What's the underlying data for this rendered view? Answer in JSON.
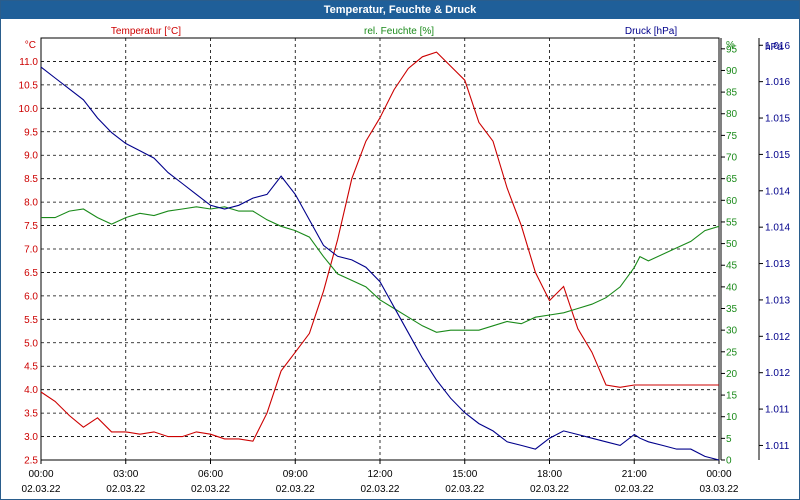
{
  "window": {
    "title": "Temperatur, Feuchte & Druck"
  },
  "chart_data": {
    "type": "line",
    "title": "Temperatur, Feuchte & Druck",
    "x_ticks": [
      {
        "time": "00:00",
        "date": "02.03.22"
      },
      {
        "time": "03:00",
        "date": "02.03.22"
      },
      {
        "time": "06:00",
        "date": "02.03.22"
      },
      {
        "time": "09:00",
        "date": "02.03.22"
      },
      {
        "time": "12:00",
        "date": "02.03.22"
      },
      {
        "time": "15:00",
        "date": "02.03.22"
      },
      {
        "time": "18:00",
        "date": "02.03.22"
      },
      {
        "time": "21:00",
        "date": "02.03.22"
      },
      {
        "time": "00:00",
        "date": "03.03.22"
      }
    ],
    "xlim_hours": [
      0,
      24
    ],
    "grid": true,
    "axes": {
      "temperature": {
        "unit": "°C",
        "color": "#cc0000",
        "ylim": [
          2.5,
          11.5
        ],
        "ticks": [
          "2.5",
          "3.0",
          "3.5",
          "4.0",
          "4.5",
          "5.0",
          "5.5",
          "6.0",
          "6.5",
          "7.0",
          "7.5",
          "8.0",
          "8.5",
          "9.0",
          "9.5",
          "10.0",
          "10.5",
          "11.0"
        ]
      },
      "humidity": {
        "unit": "%",
        "color": "#1a8a1a",
        "ylim": [
          0,
          97.5
        ],
        "ticks": [
          "0",
          "5",
          "10",
          "15",
          "20",
          "25",
          "30",
          "35",
          "40",
          "45",
          "50",
          "55",
          "60",
          "65",
          "70",
          "75",
          "80",
          "85",
          "90",
          "95"
        ]
      },
      "pressure": {
        "unit": "hPa",
        "color": "#00008b",
        "ylim": [
          1010.8,
          1016.6
        ],
        "ticks": [
          "1.011",
          "1.011",
          "1.012",
          "1.012",
          "1.013",
          "1.013",
          "1.014",
          "1.014",
          "1.015",
          "1.015",
          "1.016",
          "1.016"
        ],
        "tick_values": [
          1011.0,
          1011.5,
          1012.0,
          1012.5,
          1013.0,
          1013.5,
          1014.0,
          1014.5,
          1015.0,
          1015.5,
          1016.0,
          1016.5
        ]
      }
    },
    "series": [
      {
        "name": "Temperatur [°C]",
        "axis": "temperature",
        "color": "#cc0000",
        "x": [
          0,
          0.5,
          1,
          1.5,
          2,
          2.5,
          3,
          3.5,
          4,
          4.5,
          5,
          5.5,
          6,
          6.5,
          7,
          7.5,
          8,
          8.5,
          9,
          9.5,
          10,
          10.5,
          11,
          11.5,
          12,
          12.5,
          13,
          13.5,
          14,
          14.5,
          15,
          15.5,
          16,
          16.5,
          17,
          17.5,
          18,
          18.5,
          19,
          19.5,
          20,
          20.5,
          21,
          21.2,
          21.5,
          22,
          22.5,
          23,
          23.5,
          24
        ],
        "values": [
          3.95,
          3.75,
          3.45,
          3.2,
          3.4,
          3.1,
          3.1,
          3.05,
          3.1,
          3.0,
          3.0,
          3.1,
          3.05,
          2.95,
          2.95,
          2.9,
          3.5,
          4.4,
          4.8,
          5.2,
          6.1,
          7.2,
          8.5,
          9.3,
          9.8,
          10.4,
          10.85,
          11.1,
          11.2,
          10.9,
          10.6,
          9.7,
          9.3,
          8.3,
          7.5,
          6.5,
          5.9,
          6.2,
          5.3,
          4.8,
          4.1,
          4.05,
          4.1,
          4.1,
          4.1,
          4.1,
          4.1,
          4.1,
          4.1,
          4.1
        ]
      },
      {
        "name": "rel. Feuchte [%]",
        "axis": "humidity",
        "color": "#1a8a1a",
        "x": [
          0,
          0.5,
          1,
          1.5,
          2,
          2.5,
          3,
          3.5,
          4,
          4.5,
          5,
          5.5,
          6,
          6.5,
          7,
          7.5,
          8,
          8.5,
          9,
          9.5,
          10,
          10.5,
          11,
          11.5,
          12,
          12.5,
          13,
          13.5,
          14,
          14.5,
          15,
          15.5,
          16,
          16.5,
          17,
          17.5,
          18,
          18.5,
          19,
          19.5,
          20,
          20.5,
          21,
          21.2,
          21.5,
          22,
          22.5,
          23,
          23.5,
          24
        ],
        "values": [
          56,
          56,
          57.5,
          58,
          56,
          54.5,
          56,
          57,
          56.5,
          57.5,
          58,
          58.5,
          58,
          58.5,
          57.5,
          57.5,
          55.5,
          54,
          53,
          51.5,
          47,
          43,
          41.5,
          40,
          37,
          35,
          33,
          31,
          29.5,
          30,
          30,
          30,
          31,
          32,
          31.5,
          33,
          33.5,
          34,
          35,
          36,
          37.5,
          40,
          44.5,
          47,
          46,
          47.5,
          49,
          50.5,
          53,
          54
        ]
      },
      {
        "name": "Druck [hPa]",
        "axis": "pressure",
        "color": "#00008b",
        "x": [
          0,
          0.5,
          1,
          1.5,
          2,
          2.5,
          3,
          3.5,
          4,
          4.5,
          5,
          5.5,
          6,
          6.5,
          7,
          7.5,
          8,
          8.5,
          9,
          9.5,
          10,
          10.5,
          11,
          11.5,
          12,
          12.5,
          13,
          13.5,
          14,
          14.5,
          15,
          15.5,
          16,
          16.5,
          17,
          17.5,
          18,
          18.5,
          19,
          19.5,
          20,
          20.5,
          21,
          21.2,
          21.5,
          22,
          22.5,
          23,
          23.5,
          24
        ],
        "values": [
          1016.2,
          1016.05,
          1015.9,
          1015.75,
          1015.5,
          1015.3,
          1015.15,
          1015.05,
          1014.95,
          1014.75,
          1014.6,
          1014.45,
          1014.3,
          1014.25,
          1014.3,
          1014.4,
          1014.45,
          1014.7,
          1014.45,
          1014.1,
          1013.75,
          1013.6,
          1013.55,
          1013.45,
          1013.25,
          1012.9,
          1012.55,
          1012.2,
          1011.9,
          1011.65,
          1011.45,
          1011.3,
          1011.2,
          1011.05,
          1011.0,
          1010.95,
          1011.1,
          1011.2,
          1011.15,
          1011.1,
          1011.05,
          1011.0,
          1011.15,
          1011.1,
          1011.05,
          1011.0,
          1010.95,
          1010.95,
          1010.85,
          1010.8
        ]
      }
    ]
  }
}
